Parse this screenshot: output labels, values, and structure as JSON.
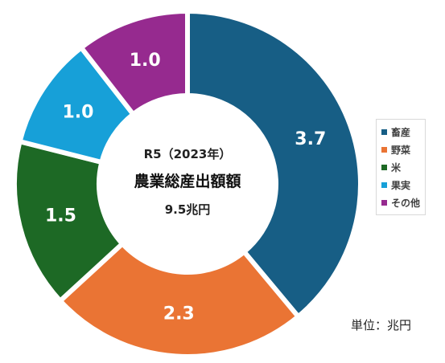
{
  "chart_data": {
    "type": "pie",
    "style": "donut",
    "center_text": {
      "line1": "R5（2023年）",
      "line2": "農業総産出額額",
      "line3": "9.5兆円"
    },
    "unit_note": "単位：兆円",
    "legend_position": "right",
    "slices": [
      {
        "label": "畜産",
        "value": 3.7,
        "display": "3.7",
        "color": "#175e85"
      },
      {
        "label": "野菜",
        "value": 2.3,
        "display": "2.3",
        "color": "#ea7434"
      },
      {
        "label": "米",
        "value": 1.5,
        "display": "1.5",
        "color": "#1d6925"
      },
      {
        "label": "果実",
        "value": 1.0,
        "display": "1.0",
        "color": "#17a0d8"
      },
      {
        "label": "その他",
        "value": 1.0,
        "display": "1.0",
        "color": "#962a8f"
      }
    ]
  }
}
